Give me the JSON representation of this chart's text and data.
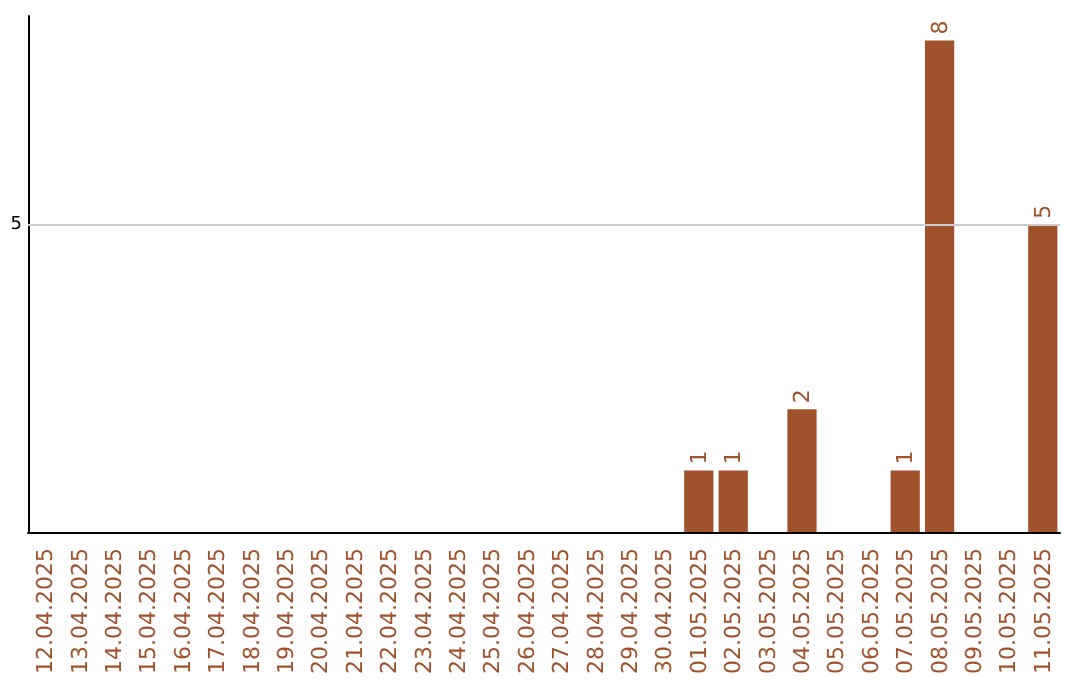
{
  "chart_data": {
    "type": "bar",
    "categories": [
      "12.04.2025",
      "13.04.2025",
      "14.04.2025",
      "15.04.2025",
      "16.04.2025",
      "17.04.2025",
      "18.04.2025",
      "19.04.2025",
      "20.04.2025",
      "21.04.2025",
      "22.04.2025",
      "23.04.2025",
      "24.04.2025",
      "25.04.2025",
      "26.04.2025",
      "27.04.2025",
      "28.04.2025",
      "29.04.2025",
      "30.04.2025",
      "01.05.2025",
      "02.05.2025",
      "03.05.2025",
      "04.05.2025",
      "05.05.2025",
      "06.05.2025",
      "07.05.2025",
      "08.05.2025",
      "09.05.2025",
      "10.05.2025",
      "11.05.2025"
    ],
    "values": [
      null,
      null,
      null,
      null,
      null,
      null,
      null,
      null,
      null,
      null,
      null,
      null,
      null,
      null,
      null,
      null,
      null,
      null,
      null,
      1,
      1,
      null,
      2,
      null,
      null,
      1,
      8,
      null,
      null,
      5
    ],
    "data_labels": true,
    "color": "#a0522d",
    "ylim": [
      0,
      8.4
    ],
    "ref_lines": [
      {
        "axis": "y",
        "value": 5,
        "label": "5",
        "color": "#cccccc"
      }
    ]
  }
}
